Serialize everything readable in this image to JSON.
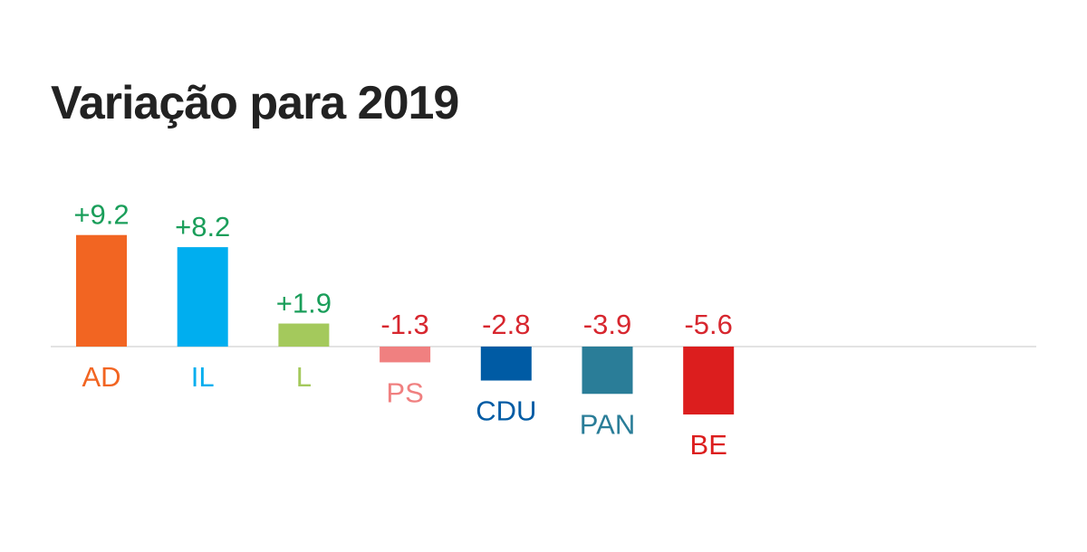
{
  "chart_data": {
    "type": "bar",
    "title": "Variação para 2019",
    "categories": [
      "AD",
      "IL",
      "L",
      "PS",
      "CDU",
      "PAN",
      "BE"
    ],
    "values": [
      9.2,
      8.2,
      1.9,
      -1.3,
      -2.8,
      -3.9,
      -5.6
    ],
    "value_labels": [
      "+9.2",
      "+8.2",
      "+1.9",
      "-1.3",
      "-2.8",
      "-3.9",
      "-5.6"
    ],
    "bar_colors": [
      "#f26522",
      "#00aeef",
      "#a4c95c",
      "#f08080",
      "#005ba4",
      "#2a7d98",
      "#dc1e1e"
    ],
    "label_colors": [
      "#f26522",
      "#00aeef",
      "#a4c95c",
      "#f08080",
      "#005ba4",
      "#2a7d98",
      "#dc1e1e"
    ],
    "positive_value_color": "#1a9e5a",
    "negative_value_color": "#d7262e",
    "baseline_color": "#e3e3e3",
    "xlabel": "",
    "ylabel": "",
    "grid": false,
    "legend": "none"
  }
}
